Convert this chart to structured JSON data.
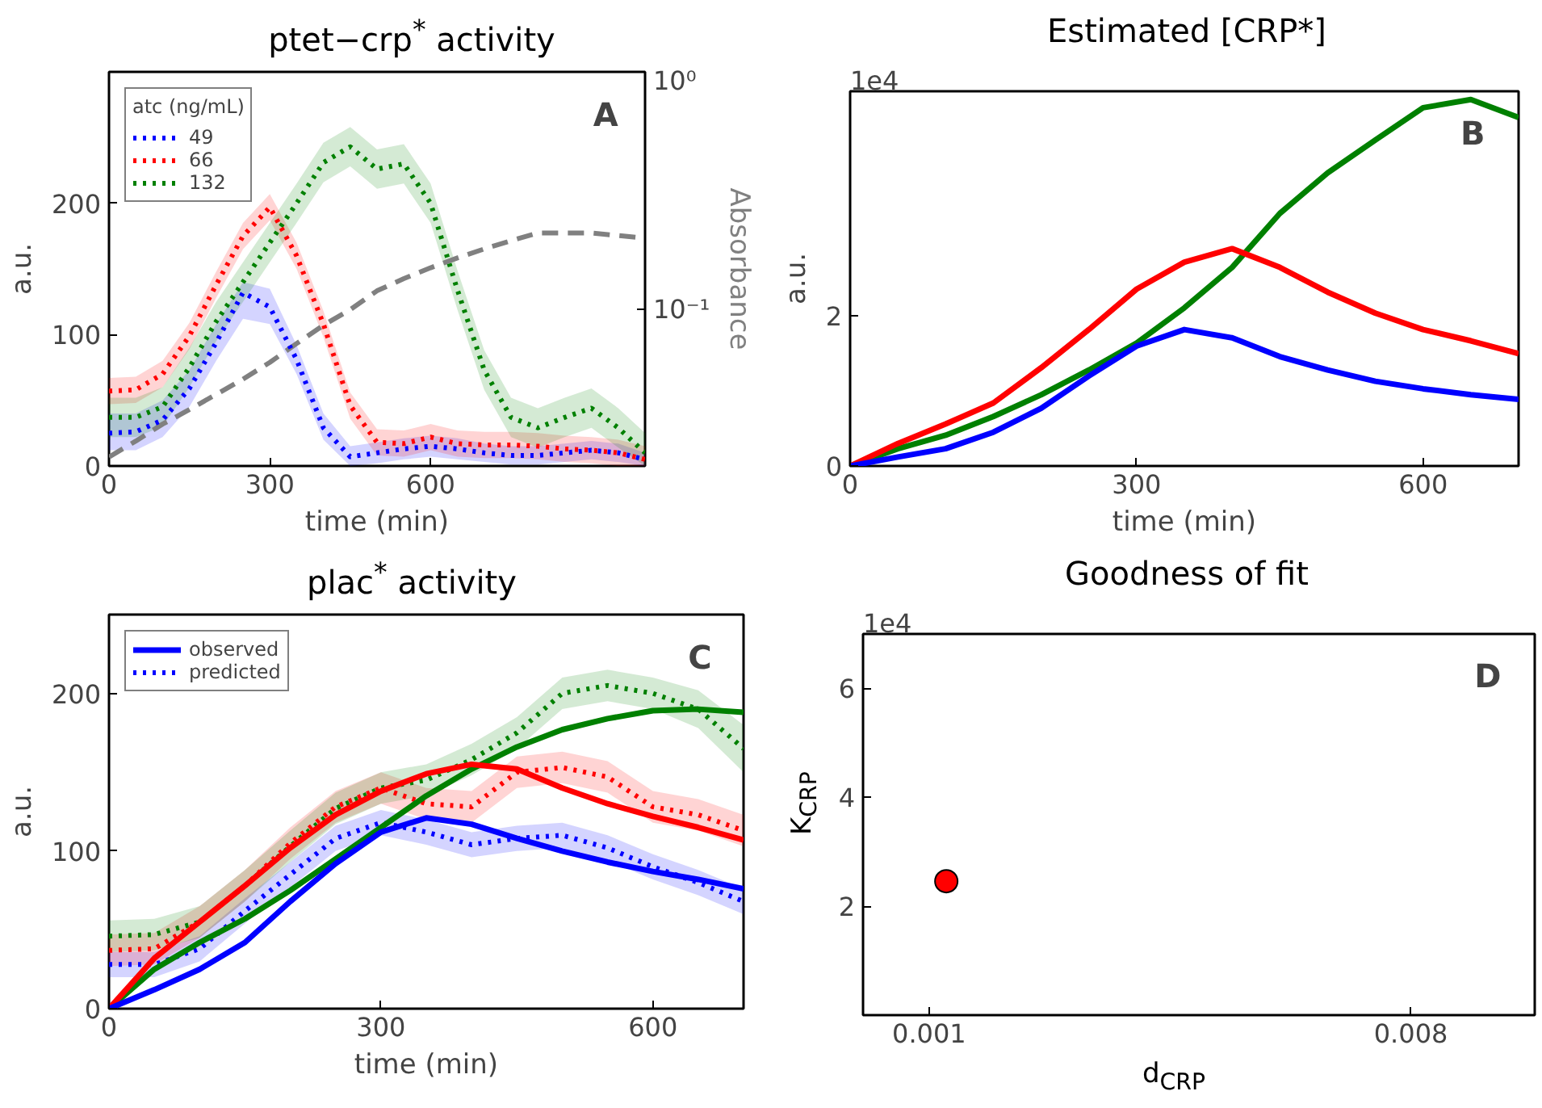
{
  "chart_data": [
    {
      "type": "line",
      "title": "ptet−crp$^{*}$ activity",
      "xlabel": "time (min)",
      "ylabel": "a.u.",
      "y2label": "Absorbance",
      "legend_title": "atc (ng/mL)",
      "legend": "top left",
      "grid": false,
      "marker": "none",
      "log": "y2",
      "annotations": [
        "A"
      ],
      "x": [
        0,
        50,
        100,
        150,
        200,
        250,
        300,
        350,
        400,
        450,
        500,
        550,
        600,
        650,
        700,
        750,
        800,
        850,
        900,
        950,
        1000
      ],
      "xlim": [
        0,
        1000
      ],
      "xticks": [
        0,
        300,
        600
      ],
      "ylim": [
        0,
        300
      ],
      "yticks": [
        0,
        100,
        200
      ],
      "y2lim": [
        0.022,
        1
      ],
      "y2ticks": [
        {
          "value": 0.1,
          "label": "10⁻¹"
        },
        {
          "value": 1,
          "label": "10⁰"
        }
      ],
      "series": [
        {
          "name": "49",
          "color": "#0000ff",
          "line_style": "dotted",
          "values": [
            25,
            26,
            35,
            59,
            94,
            132,
            121,
            81,
            29,
            7,
            10,
            13,
            15,
            13,
            10,
            8,
            8,
            10,
            12,
            10,
            5
          ],
          "lower": [
            12,
            12,
            22,
            45,
            80,
            112,
            108,
            70,
            20,
            0,
            2,
            5,
            7,
            5,
            3,
            1,
            1,
            3,
            5,
            3,
            0
          ],
          "upper": [
            40,
            40,
            50,
            73,
            108,
            140,
            135,
            92,
            40,
            15,
            18,
            21,
            23,
            21,
            17,
            15,
            15,
            17,
            19,
            17,
            10
          ]
        },
        {
          "name": "66",
          "color": "#ff0000",
          "line_style": "dotted",
          "values": [
            57,
            58,
            70,
            99,
            138,
            175,
            197,
            160,
            108,
            46,
            18,
            17,
            22,
            17,
            16,
            16,
            15,
            13,
            12,
            10,
            5
          ],
          "lower": [
            47,
            48,
            60,
            89,
            128,
            165,
            187,
            150,
            98,
            36,
            8,
            7,
            12,
            7,
            6,
            6,
            5,
            3,
            2,
            0,
            0
          ],
          "upper": [
            67,
            68,
            80,
            109,
            148,
            185,
            207,
            170,
            118,
            56,
            28,
            27,
            32,
            27,
            26,
            26,
            25,
            23,
            22,
            20,
            15
          ]
        },
        {
          "name": "132",
          "color": "#008000",
          "line_style": "dotted",
          "values": [
            37,
            37,
            45,
            75,
            110,
            140,
            170,
            200,
            231,
            243,
            226,
            230,
            200,
            134,
            73,
            37,
            29,
            37,
            44,
            29,
            10
          ],
          "lower": [
            22,
            22,
            30,
            60,
            95,
            125,
            155,
            185,
            216,
            228,
            211,
            215,
            185,
            119,
            58,
            22,
            14,
            22,
            29,
            14,
            0
          ],
          "upper": [
            52,
            52,
            60,
            90,
            125,
            155,
            185,
            215,
            246,
            258,
            241,
            245,
            215,
            149,
            88,
            52,
            44,
            52,
            59,
            44,
            25
          ]
        },
        {
          "color": "#808080",
          "line_style": "dashed",
          "axis": "y2",
          "values": [
            0.024,
            0.028,
            0.033,
            0.038,
            0.044,
            0.051,
            0.06,
            0.072,
            0.086,
            0.1,
            0.12,
            0.135,
            0.15,
            0.165,
            0.18,
            0.195,
            0.21,
            0.21,
            0.21,
            0.205,
            0.2
          ]
        }
      ]
    },
    {
      "type": "line",
      "title": "Estimated [CRP*]",
      "xlabel": "time (min)",
      "ylabel": "a.u.",
      "grid": false,
      "marker": "none",
      "annotations": [
        "B",
        "1e4"
      ],
      "x": [
        0,
        50,
        100,
        150,
        200,
        250,
        300,
        350,
        400,
        450,
        500,
        550,
        600,
        650,
        700
      ],
      "xlim": [
        0,
        700
      ],
      "xticks": [
        0,
        300,
        600
      ],
      "ylim": [
        0,
        5
      ],
      "yticks": [
        0,
        2
      ],
      "series": [
        {
          "color": "#0000ff",
          "line_style": "solid",
          "values": [
            0,
            0.12,
            0.23,
            0.45,
            0.77,
            1.2,
            1.6,
            1.82,
            1.71,
            1.46,
            1.28,
            1.13,
            1.03,
            0.95,
            0.89
          ]
        },
        {
          "color": "#ff0000",
          "line_style": "solid",
          "values": [
            0,
            0.3,
            0.56,
            0.84,
            1.31,
            1.82,
            2.36,
            2.72,
            2.9,
            2.65,
            2.32,
            2.04,
            1.82,
            1.67,
            1.5
          ]
        },
        {
          "color": "#008000",
          "line_style": "solid",
          "values": [
            0,
            0.23,
            0.41,
            0.66,
            0.95,
            1.28,
            1.64,
            2.11,
            2.65,
            3.37,
            3.91,
            4.35,
            4.78,
            4.89,
            4.65
          ]
        }
      ]
    },
    {
      "type": "line",
      "title": "plac$^{*}$ activity",
      "xlabel": "time (min)",
      "ylabel": "a.u.",
      "legend": "top left",
      "grid": false,
      "marker": "none",
      "annotations": [
        "C"
      ],
      "x": [
        0,
        50,
        100,
        150,
        200,
        250,
        300,
        350,
        400,
        450,
        500,
        550,
        600,
        650,
        700
      ],
      "xlim": [
        0,
        700
      ],
      "xticks": [
        0,
        300,
        600
      ],
      "ylim": [
        0,
        250
      ],
      "yticks": [
        0,
        100,
        200
      ],
      "series": [
        {
          "name": "observed",
          "color": "#0000ff",
          "line_style": "solid",
          "values": [
            0,
            12,
            25,
            42,
            68,
            92,
            112,
            121,
            117,
            108,
            100,
            93,
            87,
            82,
            76
          ]
        },
        {
          "color": "#ff0000",
          "line_style": "solid",
          "values": [
            0,
            32,
            55,
            78,
            102,
            123,
            138,
            149,
            155,
            152,
            140,
            130,
            122,
            115,
            107
          ]
        },
        {
          "color": "#008000",
          "line_style": "solid",
          "values": [
            0,
            25,
            42,
            57,
            75,
            95,
            115,
            135,
            152,
            166,
            177,
            184,
            189,
            190,
            188
          ]
        },
        {
          "name": "predicted",
          "color": "#0000ff",
          "line_style": "dotted",
          "values": [
            28,
            28,
            38,
            62,
            85,
            108,
            118,
            112,
            104,
            108,
            110,
            102,
            90,
            80,
            68
          ],
          "lower": [
            20,
            20,
            30,
            54,
            77,
            100,
            110,
            104,
            96,
            100,
            102,
            94,
            82,
            72,
            60
          ],
          "upper": [
            36,
            36,
            46,
            70,
            93,
            116,
            126,
            120,
            112,
            116,
            118,
            110,
            98,
            88,
            76
          ]
        },
        {
          "color": "#ff0000",
          "line_style": "dotted",
          "values": [
            37,
            38,
            55,
            78,
            105,
            128,
            140,
            130,
            128,
            150,
            153,
            147,
            128,
            123,
            113
          ],
          "lower": [
            27,
            28,
            45,
            68,
            95,
            118,
            130,
            120,
            118,
            140,
            143,
            137,
            118,
            113,
            103
          ],
          "upper": [
            47,
            48,
            65,
            88,
            115,
            138,
            150,
            140,
            138,
            160,
            163,
            157,
            138,
            133,
            123
          ]
        },
        {
          "color": "#008000",
          "line_style": "dotted",
          "values": [
            46,
            47,
            55,
            78,
            103,
            127,
            140,
            145,
            158,
            175,
            200,
            205,
            200,
            190,
            165
          ],
          "lower": [
            36,
            37,
            45,
            68,
            93,
            117,
            130,
            135,
            148,
            165,
            190,
            195,
            190,
            178,
            150
          ],
          "upper": [
            56,
            57,
            65,
            88,
            113,
            137,
            150,
            155,
            168,
            185,
            210,
            215,
            210,
            202,
            180
          ]
        }
      ]
    },
    {
      "type": "scatter",
      "title": "Goodness of fit",
      "xlabel": "d$_{CRP}$",
      "ylabel": "K$_{CRP}$",
      "grid": false,
      "marker": "circle",
      "annotations": [
        "D",
        "1e4"
      ],
      "xlim": [
        4e-05,
        0.0098
      ],
      "xticks": [
        {
          "value": 0.001,
          "label": "0.001"
        },
        {
          "value": 0.008,
          "label": "0.008"
        }
      ],
      "ylim": [
        0,
        7
      ],
      "yticks": [
        2,
        4,
        6
      ],
      "series": [
        {
          "color": "#ff0000",
          "x": [
            0.00125
          ],
          "values": [
            2.46
          ]
        }
      ]
    }
  ]
}
